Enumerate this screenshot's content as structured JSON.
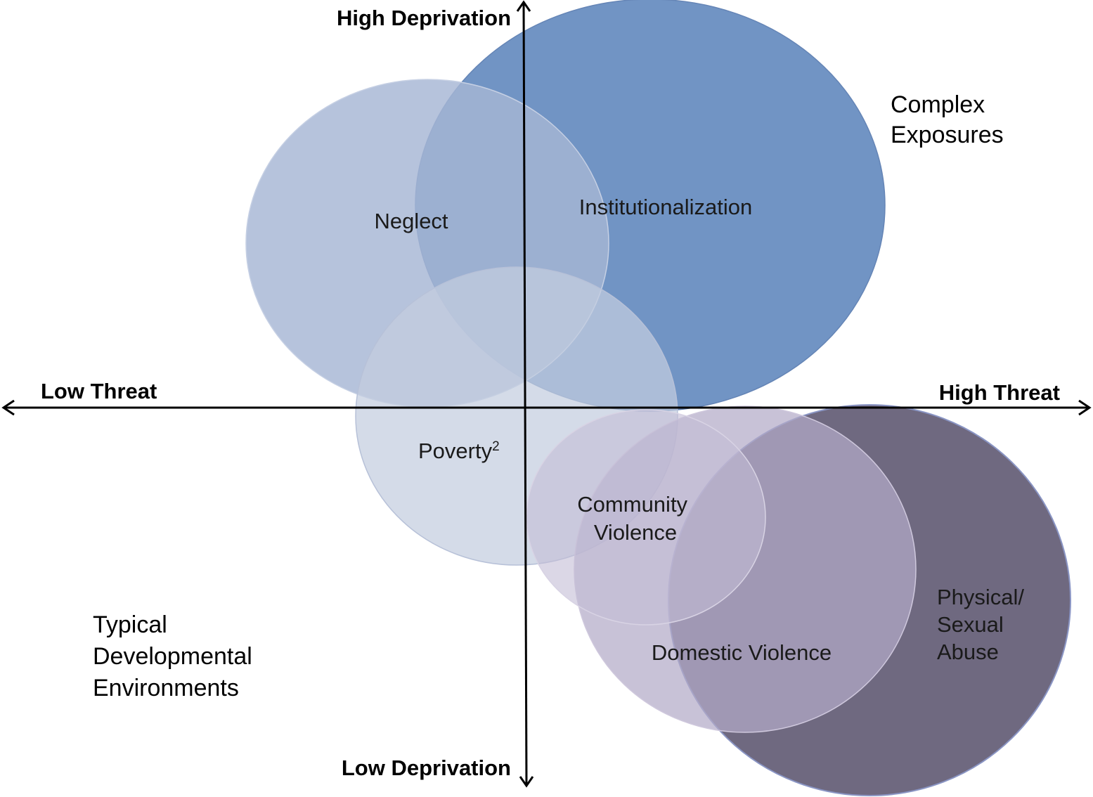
{
  "axes": {
    "y_top": "High Deprivation",
    "y_bottom": "Low Deprivation",
    "x_left": "Low Threat",
    "x_right": "High Threat"
  },
  "corner_labels": {
    "top_right": [
      "Complex",
      "Exposures"
    ],
    "bottom_left": [
      "Typical",
      "Developmental",
      "Environments"
    ]
  },
  "regions": {
    "institutionalization": {
      "label": [
        "Institutionalization"
      ],
      "color": "#7194c4"
    },
    "neglect": {
      "label": [
        "Neglect"
      ],
      "color": "#a6b6d4"
    },
    "poverty": {
      "label": [
        "Poverty"
      ],
      "superscript": "2",
      "color": "#c4cddf"
    },
    "physical_sexual_abuse": {
      "label": [
        "Physical/",
        "Sexual",
        "Abuse"
      ],
      "color": "#6f6980"
    },
    "domestic_violence": {
      "label": [
        "Domestic Violence"
      ],
      "color": "#b3aac8"
    },
    "community_violence": {
      "label": [
        "Community",
        "Violence"
      ],
      "color": "#c3bdd6"
    }
  }
}
